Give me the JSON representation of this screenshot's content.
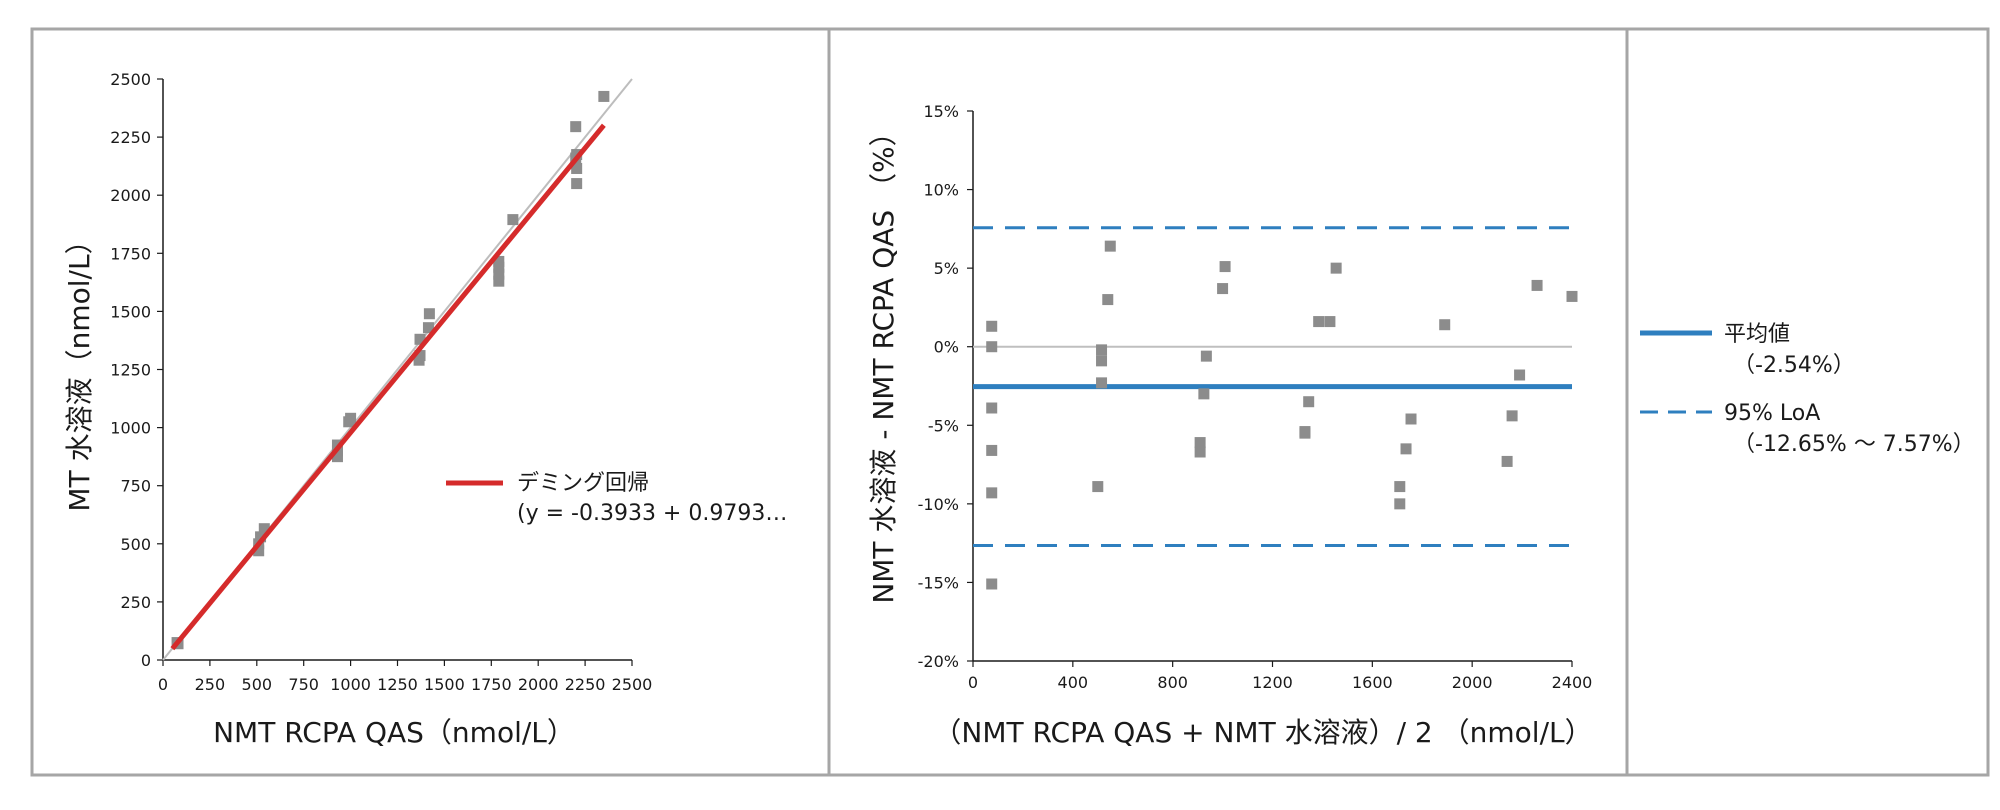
{
  "colors": {
    "frame": "#a6a6a6",
    "marker": "#8c8c8c",
    "deming_line": "#d52b2b",
    "identity_line": "#bdbdbd",
    "mean_line": "#2e7fbf",
    "loa_line": "#2e7fbf",
    "zero_line": "#bfbfbf"
  },
  "chart_data": [
    {
      "type": "scatter",
      "xlabel": "NMT RCPA QAS（nmol/L）",
      "ylabel": "MT 水溶液（nmol/L）",
      "xlim": [
        0,
        2500
      ],
      "ylim": [
        0,
        2500
      ],
      "xticks": [
        "0",
        "250",
        "500",
        "750",
        "1000",
        "1250",
        "1500",
        "1750",
        "2000",
        "2250",
        "2500"
      ],
      "yticks": [
        "0",
        "250",
        "500",
        "750",
        "1000",
        "1250",
        "1500",
        "1750",
        "2000",
        "2250",
        "2500"
      ],
      "grid": false,
      "legend_position": "right",
      "points": [
        {
          "x": 75,
          "y": 75
        },
        {
          "x": 80,
          "y": 70
        },
        {
          "x": 510,
          "y": 470
        },
        {
          "x": 510,
          "y": 500
        },
        {
          "x": 520,
          "y": 530
        },
        {
          "x": 540,
          "y": 565
        },
        {
          "x": 930,
          "y": 875
        },
        {
          "x": 930,
          "y": 900
        },
        {
          "x": 930,
          "y": 925
        },
        {
          "x": 990,
          "y": 1025
        },
        {
          "x": 1000,
          "y": 1040
        },
        {
          "x": 1365,
          "y": 1290
        },
        {
          "x": 1370,
          "y": 1310
        },
        {
          "x": 1370,
          "y": 1380
        },
        {
          "x": 1415,
          "y": 1430
        },
        {
          "x": 1420,
          "y": 1490
        },
        {
          "x": 1790,
          "y": 1630
        },
        {
          "x": 1790,
          "y": 1660
        },
        {
          "x": 1790,
          "y": 1690
        },
        {
          "x": 1790,
          "y": 1715
        },
        {
          "x": 1865,
          "y": 1895
        },
        {
          "x": 2205,
          "y": 2050
        },
        {
          "x": 2205,
          "y": 2115
        },
        {
          "x": 2200,
          "y": 2160
        },
        {
          "x": 2205,
          "y": 2175
        },
        {
          "x": 2200,
          "y": 2295
        },
        {
          "x": 2350,
          "y": 2425
        }
      ],
      "identity_line": {
        "x": [
          0,
          2500
        ],
        "y": [
          0,
          2500
        ]
      },
      "regression": {
        "name": "デミング回帰",
        "equation": "(y = -0.3933 + 0.9793…",
        "intercept": -0.3933,
        "slope": 0.9793,
        "x_range": [
          50,
          2350
        ]
      }
    },
    {
      "type": "scatter",
      "xlabel": "（NMT RCPA QAS + NMT 水溶液）/ 2 （nmol/L）",
      "ylabel": "NMT 水溶液 - NMT RCPA QAS （%）",
      "xlim": [
        0,
        2400
      ],
      "ylim": [
        -20,
        15
      ],
      "xticks": [
        "0",
        "400",
        "800",
        "1200",
        "1600",
        "2000",
        "2400"
      ],
      "yticks": [
        "-20%",
        "-15%",
        "-10%",
        "-5%",
        "0%",
        "5%",
        "10%",
        "15%"
      ],
      "grid": false,
      "legend_position": "right",
      "points": [
        {
          "x": 75,
          "y": 1.3
        },
        {
          "x": 75,
          "y": 0.0
        },
        {
          "x": 75,
          "y": -3.9
        },
        {
          "x": 75,
          "y": -6.6
        },
        {
          "x": 75,
          "y": -9.3
        },
        {
          "x": 75,
          "y": -15.1
        },
        {
          "x": 500,
          "y": -8.9
        },
        {
          "x": 515,
          "y": -0.2
        },
        {
          "x": 515,
          "y": -0.9
        },
        {
          "x": 515,
          "y": -2.3
        },
        {
          "x": 540,
          "y": 3.0
        },
        {
          "x": 550,
          "y": 6.4
        },
        {
          "x": 910,
          "y": -6.1
        },
        {
          "x": 910,
          "y": -6.7
        },
        {
          "x": 925,
          "y": -3.0
        },
        {
          "x": 935,
          "y": -0.6
        },
        {
          "x": 1000,
          "y": 3.7
        },
        {
          "x": 1010,
          "y": 5.1
        },
        {
          "x": 1330,
          "y": -5.5
        },
        {
          "x": 1330,
          "y": -5.4
        },
        {
          "x": 1345,
          "y": -3.5
        },
        {
          "x": 1385,
          "y": 1.6
        },
        {
          "x": 1430,
          "y": 1.6
        },
        {
          "x": 1455,
          "y": 5.0
        },
        {
          "x": 1710,
          "y": -8.9
        },
        {
          "x": 1710,
          "y": -10.0
        },
        {
          "x": 1735,
          "y": -6.5
        },
        {
          "x": 1755,
          "y": -4.6
        },
        {
          "x": 1890,
          "y": 1.4
        },
        {
          "x": 2140,
          "y": -7.3
        },
        {
          "x": 2160,
          "y": -4.4
        },
        {
          "x": 2190,
          "y": -1.8
        },
        {
          "x": 2260,
          "y": 3.9
        },
        {
          "x": 2400,
          "y": 3.2
        }
      ],
      "zero_line": 0,
      "mean": {
        "value": -2.54,
        "name": "平均値",
        "label": "（-2.54%）"
      },
      "loa": {
        "upper": 7.57,
        "lower": -12.65,
        "name": "95% LoA",
        "label": "（-12.65% ～ 7.57%）"
      }
    }
  ]
}
